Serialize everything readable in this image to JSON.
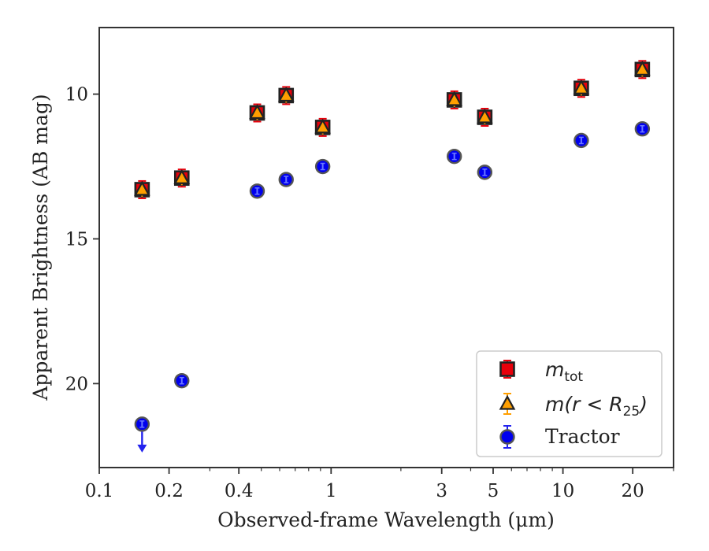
{
  "chart_data": {
    "type": "scatter",
    "xlabel": "Observed-frame Wavelength (μm)",
    "ylabel": "Apparent Brightness (AB mag)",
    "xscale": "log",
    "xlim": [
      0.1,
      30
    ],
    "ylim": [
      22.9,
      7.7
    ],
    "y_inverted": true,
    "x_ticks": [
      0.1,
      0.2,
      0.4,
      1,
      3,
      5,
      10,
      20
    ],
    "x_tick_labels": [
      "0.1",
      "0.2",
      "0.4",
      "1",
      "3",
      "5",
      "10",
      "20"
    ],
    "y_ticks": [
      10,
      15,
      20
    ],
    "y_tick_labels": [
      "10",
      "15",
      "20"
    ],
    "grid": false,
    "legend_position": "bottom-right",
    "series": [
      {
        "name": "m_tot",
        "color": "#e8000b",
        "marker": "square",
        "x": [
          0.153,
          0.227,
          0.48,
          0.64,
          0.92,
          3.4,
          4.6,
          12,
          22
        ],
        "y": [
          13.3,
          12.9,
          10.65,
          10.05,
          11.15,
          10.2,
          10.8,
          9.8,
          9.15
        ]
      },
      {
        "name": "m(r < R_25)",
        "color": "#ff9f00",
        "marker": "triangle",
        "x": [
          0.153,
          0.227,
          0.48,
          0.64,
          0.92,
          3.4,
          4.6,
          12,
          22
        ],
        "y": [
          13.3,
          12.9,
          10.65,
          10.05,
          11.15,
          10.2,
          10.8,
          9.8,
          9.15
        ]
      },
      {
        "name": "Tractor",
        "color": "#0000ee",
        "marker": "circle",
        "x": [
          0.153,
          0.227,
          0.48,
          0.64,
          0.92,
          3.4,
          4.6,
          12,
          22
        ],
        "y": [
          21.4,
          19.9,
          13.35,
          12.95,
          12.5,
          12.15,
          12.7,
          11.6,
          11.2
        ],
        "upper_limit_index": 0
      }
    ]
  },
  "legend": {
    "entry1_main": "m",
    "entry1_sub": "tot",
    "entry2_main": "m(r < R",
    "entry2_sub": "25",
    "entry2_close": ")",
    "entry3": "Tractor"
  }
}
